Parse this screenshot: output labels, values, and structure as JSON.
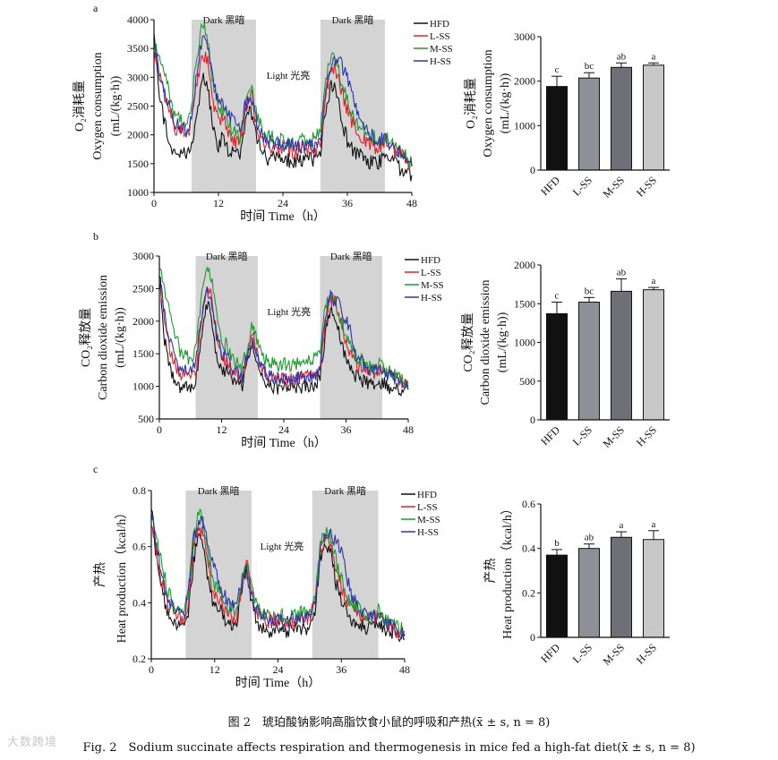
{
  "figure": {
    "caption_cn": "图 2　琥珀酸钠影响高脂饮食小鼠的呼吸和产热(x̄ ± s, n = 8)",
    "caption_en": "Fig. 2　Sodium succinate affects respiration and thermogenesis in mice fed a high-fat diet(x̄ ± s, n = 8)",
    "watermark": "大数跨境",
    "series_names": [
      "HFD",
      "L-SS",
      "M-SS",
      "H-SS"
    ],
    "colors": {
      "HFD": "#111111",
      "L-SS": "#e0202b",
      "M-SS": "#1e9a2e",
      "H-SS": "#2b35a8"
    },
    "bar_colors": [
      "#111111",
      "#8f8f98",
      "#6f6f78",
      "#c8c8c8"
    ]
  },
  "chart_data": [
    {
      "id": "a-line",
      "panel": "a",
      "type": "line",
      "ylabel_cn": "O₂消耗量",
      "ylabel_en": "Oxygen consumption",
      "ylabel_unit": "(mL/(kg·h))",
      "xlabel": "时间  Time（h）",
      "xticks": [
        0,
        12,
        24,
        36,
        48
      ],
      "yticks": [
        1000,
        1500,
        2000,
        2500,
        3000,
        3500,
        4000
      ],
      "xlim": [
        0,
        48
      ],
      "ylim": [
        1000,
        4000
      ],
      "dark_periods": [
        [
          7,
          19
        ],
        [
          31,
          43
        ]
      ],
      "dark_label": "Dark 黑暗",
      "light_label": "Light 光亮",
      "keyframes": {
        "x": [
          0,
          1,
          2,
          3,
          4,
          5,
          6,
          7,
          8,
          9,
          10,
          11,
          12,
          13,
          14,
          15,
          16,
          17,
          18,
          19,
          20,
          21,
          22,
          23,
          24,
          25,
          26,
          27,
          28,
          29,
          30,
          31,
          32,
          33,
          34,
          35,
          36,
          37,
          38,
          39,
          40,
          41,
          42,
          43,
          44,
          45,
          46,
          47,
          48
        ],
        "HFD": [
          3900,
          2700,
          2200,
          1800,
          1650,
          1700,
          1650,
          1750,
          2400,
          3000,
          2800,
          2100,
          1800,
          2000,
          1700,
          1650,
          1600,
          2200,
          2400,
          2000,
          1700,
          1600,
          1600,
          1550,
          1650,
          1550,
          1550,
          1550,
          1600,
          1600,
          1550,
          1750,
          2400,
          2900,
          2700,
          2200,
          1900,
          1750,
          1650,
          1600,
          1550,
          1500,
          1550,
          1600,
          1500,
          1500,
          1400,
          1350,
          1300
        ],
        "L-SS": [
          3400,
          3000,
          2700,
          2300,
          2100,
          2100,
          2000,
          2200,
          2900,
          3400,
          3300,
          2600,
          2200,
          2300,
          2000,
          1900,
          1850,
          2400,
          2750,
          2200,
          1900,
          1800,
          1800,
          1750,
          1800,
          1750,
          1700,
          1750,
          1750,
          1800,
          1700,
          1900,
          2700,
          3200,
          3100,
          2700,
          2400,
          2200,
          2000,
          1950,
          1850,
          1800,
          1800,
          1900,
          1750,
          1700,
          1650,
          1550,
          1450
        ],
        "M-SS": [
          3600,
          3300,
          3100,
          2600,
          2300,
          2250,
          2100,
          2500,
          3400,
          3900,
          3700,
          2900,
          2400,
          2450,
          2150,
          2050,
          2000,
          2500,
          2900,
          2400,
          2100,
          2000,
          1950,
          1900,
          1950,
          1900,
          1850,
          1900,
          1900,
          1950,
          1900,
          2150,
          3000,
          3350,
          3250,
          2900,
          2600,
          2350,
          2150,
          2100,
          2000,
          1950,
          1900,
          2000,
          1850,
          1800,
          1700,
          1600,
          1500
        ],
        "H-SS": [
          3700,
          3100,
          2800,
          2400,
          2200,
          2150,
          2050,
          2300,
          3100,
          3700,
          3500,
          2900,
          2600,
          2500,
          2300,
          2200,
          2100,
          2500,
          2600,
          2250,
          2000,
          1900,
          1850,
          1850,
          1850,
          1800,
          1800,
          1800,
          1800,
          1850,
          1800,
          2000,
          2800,
          3300,
          3300,
          3200,
          3000,
          2700,
          2300,
          2100,
          2000,
          1950,
          1900,
          1950,
          1800,
          1750,
          1650,
          1550,
          1450
        ]
      }
    },
    {
      "id": "a-bar",
      "panel": "a",
      "type": "bar",
      "ylabel_cn": "O₂消耗量",
      "ylabel_en": "Oxygen consumption",
      "ylabel_unit": "(mL/(kg·h))",
      "categories": [
        "HFD",
        "L-SS",
        "M-SS",
        "H-SS"
      ],
      "values": [
        1880,
        2070,
        2310,
        2360
      ],
      "errors": [
        230,
        120,
        100,
        50
      ],
      "letters": [
        "c",
        "bc",
        "ab",
        "a"
      ],
      "yticks": [
        0,
        1000,
        2000,
        3000
      ],
      "ylim": [
        0,
        3000
      ]
    },
    {
      "id": "b-line",
      "panel": "b",
      "type": "line",
      "ylabel_cn": "CO₂释放量",
      "ylabel_en": "Carbon dioxide emission",
      "ylabel_unit": "(mL/(kg·h))",
      "xlabel": "时间  Time（h）",
      "xticks": [
        0,
        12,
        24,
        36,
        48
      ],
      "yticks": [
        500,
        1000,
        1500,
        2000,
        2500,
        3000
      ],
      "xlim": [
        0,
        48
      ],
      "ylim": [
        500,
        3000
      ],
      "dark_periods": [
        [
          7,
          19
        ],
        [
          31,
          43
        ]
      ],
      "dark_label": "Dark 黑暗",
      "light_label": "Light 光亮",
      "keyframes": {
        "x": [
          0,
          1,
          2,
          3,
          4,
          5,
          6,
          7,
          8,
          9,
          10,
          11,
          12,
          13,
          14,
          15,
          16,
          17,
          18,
          19,
          20,
          21,
          22,
          23,
          24,
          25,
          26,
          27,
          28,
          29,
          30,
          31,
          32,
          33,
          34,
          35,
          36,
          37,
          38,
          39,
          40,
          41,
          42,
          43,
          44,
          45,
          46,
          47,
          48
        ],
        "HFD": [
          2800,
          1700,
          1300,
          1100,
          1000,
          1050,
          1000,
          1100,
          1700,
          2300,
          2100,
          1500,
          1200,
          1250,
          1050,
          1000,
          1000,
          1400,
          1650,
          1300,
          1100,
          1000,
          1000,
          950,
          1050,
          1000,
          1000,
          1000,
          1000,
          1000,
          1000,
          1150,
          1800,
          2200,
          2100,
          1700,
          1400,
          1250,
          1150,
          1100,
          1050,
          1000,
          1050,
          1050,
          1000,
          980,
          950,
          950,
          950
        ],
        "L-SS": [
          2600,
          2000,
          1600,
          1350,
          1200,
          1200,
          1150,
          1250,
          1900,
          2500,
          2400,
          1800,
          1450,
          1400,
          1200,
          1150,
          1100,
          1450,
          1800,
          1450,
          1250,
          1150,
          1150,
          1100,
          1150,
          1100,
          1100,
          1150,
          1150,
          1150,
          1150,
          1300,
          2000,
          2350,
          2300,
          2000,
          1700,
          1500,
          1350,
          1300,
          1250,
          1200,
          1200,
          1250,
          1200,
          1150,
          1100,
          1050,
          1000
        ],
        "M-SS": [
          2900,
          2500,
          2200,
          1800,
          1550,
          1500,
          1400,
          1550,
          2300,
          2800,
          2700,
          2100,
          1700,
          1650,
          1400,
          1350,
          1300,
          1650,
          1950,
          1650,
          1450,
          1400,
          1350,
          1300,
          1350,
          1300,
          1300,
          1350,
          1350,
          1400,
          1400,
          1550,
          2200,
          2400,
          2300,
          2050,
          1800,
          1600,
          1450,
          1400,
          1350,
          1300,
          1300,
          1350,
          1250,
          1200,
          1150,
          1100,
          1050
        ],
        "H-SS": [
          2700,
          2100,
          1700,
          1450,
          1300,
          1250,
          1200,
          1350,
          2000,
          2450,
          2350,
          1800,
          1500,
          1450,
          1250,
          1200,
          1150,
          1500,
          1700,
          1400,
          1250,
          1150,
          1150,
          1100,
          1150,
          1100,
          1100,
          1150,
          1100,
          1150,
          1150,
          1300,
          2000,
          2400,
          2300,
          2200,
          2000,
          1800,
          1500,
          1400,
          1300,
          1250,
          1250,
          1300,
          1200,
          1150,
          1100,
          1050,
          1000
        ]
      }
    },
    {
      "id": "b-bar",
      "panel": "b",
      "type": "bar",
      "ylabel_cn": "CO₂释放量",
      "ylabel_en": "Carbon dioxide emission",
      "ylabel_unit": "(mL/(kg·h))",
      "categories": [
        "HFD",
        "L-SS",
        "M-SS",
        "H-SS"
      ],
      "values": [
        1370,
        1520,
        1660,
        1680
      ],
      "errors": [
        150,
        60,
        160,
        30
      ],
      "letters": [
        "c",
        "bc",
        "ab",
        "a"
      ],
      "yticks": [
        0,
        500,
        1000,
        1500,
        2000
      ],
      "ylim": [
        0,
        2000
      ]
    },
    {
      "id": "c-line",
      "panel": "c",
      "type": "line",
      "ylabel_cn": "产热",
      "ylabel_en": "Heat production（kcal/h）",
      "ylabel_unit": "",
      "xlabel": "时间  Time（h）",
      "xticks": [
        0,
        12,
        24,
        36,
        48
      ],
      "yticks": [
        0.2,
        0.4,
        0.6,
        0.8
      ],
      "xlim": [
        0,
        48
      ],
      "ylim": [
        0.2,
        0.8
      ],
      "dark_periods": [
        [
          6.5,
          19
        ],
        [
          30.5,
          43
        ]
      ],
      "dark_label": "Dark 黑暗",
      "light_label": "Light 光亮",
      "keyframes": {
        "x": [
          0,
          1,
          2,
          3,
          4,
          5,
          6,
          7,
          8,
          9,
          10,
          11,
          12,
          13,
          14,
          15,
          16,
          17,
          18,
          19,
          20,
          21,
          22,
          23,
          24,
          25,
          26,
          27,
          28,
          29,
          30,
          31,
          32,
          33,
          34,
          35,
          36,
          37,
          38,
          39,
          40,
          41,
          42,
          43,
          44,
          45,
          46,
          47,
          48
        ],
        "HFD": [
          0.76,
          0.55,
          0.45,
          0.36,
          0.33,
          0.32,
          0.31,
          0.35,
          0.55,
          0.66,
          0.6,
          0.45,
          0.38,
          0.38,
          0.33,
          0.32,
          0.31,
          0.45,
          0.52,
          0.4,
          0.33,
          0.31,
          0.3,
          0.29,
          0.31,
          0.3,
          0.3,
          0.3,
          0.31,
          0.31,
          0.3,
          0.36,
          0.56,
          0.62,
          0.58,
          0.47,
          0.41,
          0.37,
          0.34,
          0.33,
          0.32,
          0.31,
          0.31,
          0.33,
          0.31,
          0.3,
          0.29,
          0.28,
          0.27
        ],
        "L-SS": [
          0.7,
          0.58,
          0.48,
          0.4,
          0.36,
          0.35,
          0.34,
          0.4,
          0.6,
          0.67,
          0.63,
          0.5,
          0.42,
          0.42,
          0.37,
          0.35,
          0.34,
          0.45,
          0.55,
          0.43,
          0.37,
          0.35,
          0.34,
          0.33,
          0.34,
          0.33,
          0.33,
          0.34,
          0.34,
          0.35,
          0.34,
          0.4,
          0.58,
          0.64,
          0.61,
          0.52,
          0.46,
          0.41,
          0.38,
          0.37,
          0.35,
          0.34,
          0.34,
          0.36,
          0.33,
          0.32,
          0.31,
          0.3,
          0.29
        ],
        "M-SS": [
          0.74,
          0.63,
          0.55,
          0.45,
          0.4,
          0.38,
          0.36,
          0.43,
          0.64,
          0.72,
          0.68,
          0.55,
          0.46,
          0.45,
          0.4,
          0.38,
          0.37,
          0.47,
          0.55,
          0.45,
          0.39,
          0.37,
          0.36,
          0.35,
          0.36,
          0.35,
          0.35,
          0.36,
          0.36,
          0.37,
          0.36,
          0.42,
          0.6,
          0.65,
          0.63,
          0.55,
          0.48,
          0.43,
          0.4,
          0.38,
          0.37,
          0.35,
          0.35,
          0.37,
          0.34,
          0.33,
          0.32,
          0.31,
          0.3
        ],
        "H-SS": [
          0.72,
          0.6,
          0.5,
          0.42,
          0.38,
          0.37,
          0.35,
          0.42,
          0.62,
          0.7,
          0.68,
          0.6,
          0.52,
          0.47,
          0.42,
          0.4,
          0.38,
          0.46,
          0.52,
          0.42,
          0.37,
          0.35,
          0.34,
          0.33,
          0.34,
          0.33,
          0.33,
          0.34,
          0.34,
          0.35,
          0.34,
          0.4,
          0.58,
          0.64,
          0.64,
          0.62,
          0.58,
          0.5,
          0.42,
          0.39,
          0.37,
          0.35,
          0.35,
          0.36,
          0.33,
          0.32,
          0.31,
          0.3,
          0.29
        ]
      }
    },
    {
      "id": "c-bar",
      "panel": "c",
      "type": "bar",
      "ylabel_cn": "产热",
      "ylabel_en": "Heat production（kcal/h）",
      "ylabel_unit": "",
      "categories": [
        "HFD",
        "L-SS",
        "M-SS",
        "H-SS"
      ],
      "values": [
        0.37,
        0.4,
        0.45,
        0.44
      ],
      "errors": [
        0.025,
        0.02,
        0.025,
        0.04
      ],
      "letters": [
        "b",
        "ab",
        "a",
        "a"
      ],
      "yticks": [
        0.0,
        0.2,
        0.4,
        0.6
      ],
      "ylim": [
        0,
        0.6
      ]
    }
  ]
}
